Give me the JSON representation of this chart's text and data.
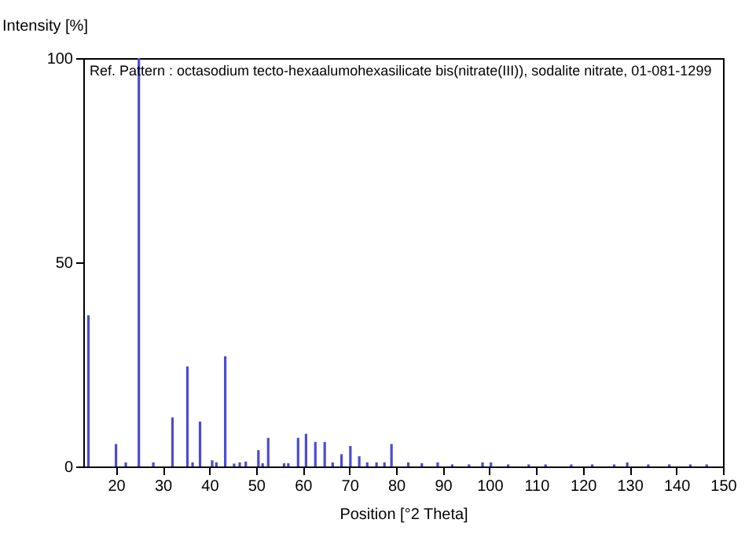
{
  "chart_data": {
    "type": "bar",
    "title": "Ref. Pattern : octasodium tecto-hexaalumohexasilicate bis(nitrate(III)), sodalite nitrate, 01-081-1299",
    "xlabel": "Position [°2 Theta]",
    "ylabel": "Intensity [%]",
    "color": "#4b4bd6",
    "x": [
      14.1,
      20.0,
      22.1,
      24.9,
      28.0,
      32.1,
      35.3,
      36.4,
      38.0,
      40.6,
      41.5,
      43.4,
      45.3,
      46.5,
      47.8,
      50.5,
      51.4,
      52.6,
      56.0,
      56.9,
      59.0,
      60.7,
      62.7,
      64.7,
      66.4,
      68.3,
      70.2,
      72.1,
      73.8,
      75.8,
      77.5,
      79.0,
      82.6,
      85.5,
      88.9,
      92.0,
      95.6,
      98.5,
      100.3,
      104.0,
      108.4,
      112.0,
      117.5,
      122.0,
      126.7,
      129.5,
      134.0,
      138.5,
      143.0,
      146.5
    ],
    "values": [
      37,
      5.5,
      1,
      100,
      1,
      12,
      24.5,
      1,
      11,
      1.5,
      1,
      27,
      0.7,
      1,
      1.2,
      4,
      0.8,
      7,
      0.8,
      0.8,
      7,
      8,
      6,
      6,
      1,
      3,
      5,
      2.5,
      1,
      1,
      1,
      5.5,
      1,
      0.8,
      1,
      0.5,
      0.5,
      1,
      1,
      0.5,
      0.5,
      0.5,
      0.5,
      0.5,
      0.5,
      1,
      0.5,
      0.5,
      0.5,
      0.5
    ],
    "xlim": [
      13,
      150
    ],
    "xticks": [
      20,
      30,
      40,
      50,
      60,
      70,
      80,
      90,
      100,
      110,
      120,
      130,
      140,
      150
    ],
    "ylim": [
      0,
      100
    ],
    "yticks": [
      0,
      50,
      100
    ],
    "grid": false
  }
}
